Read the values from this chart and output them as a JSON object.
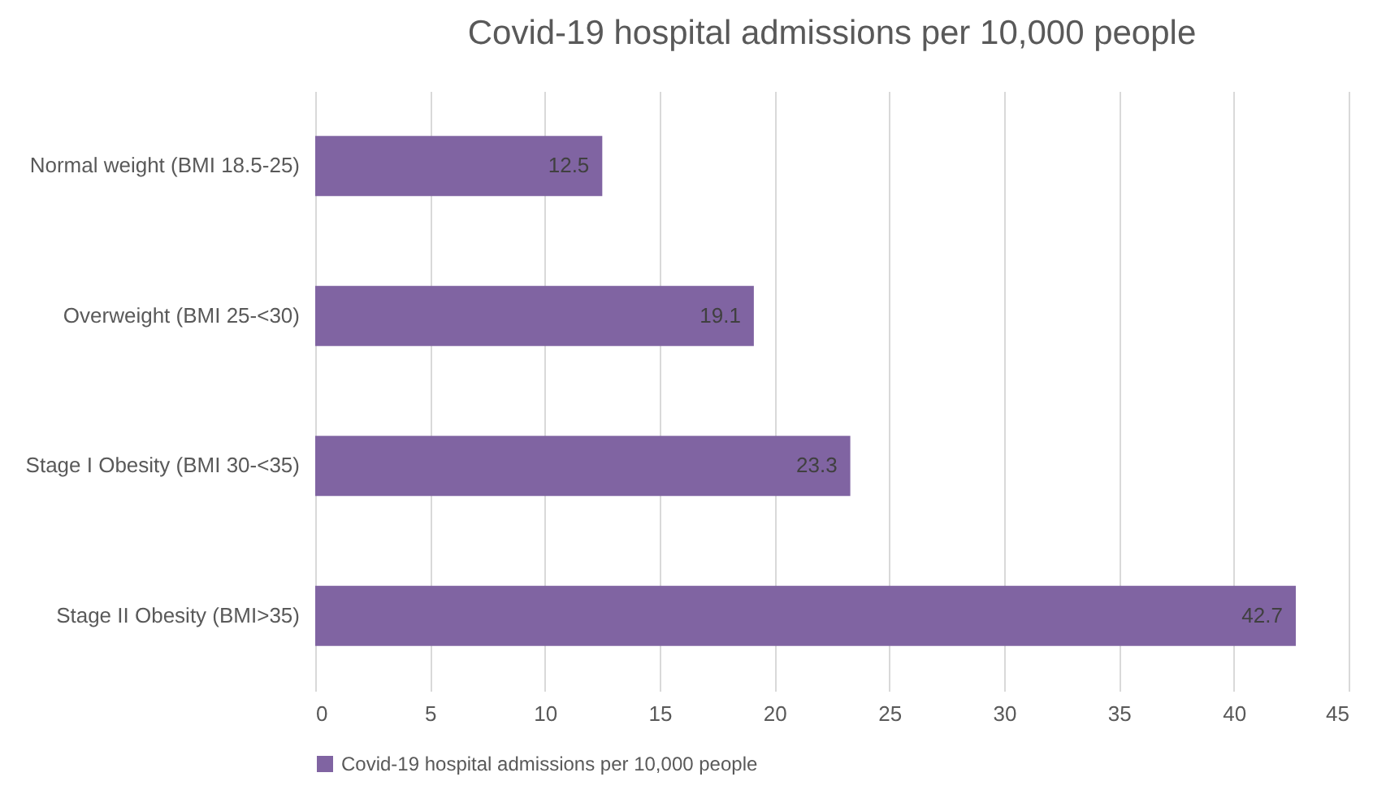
{
  "chart_data": {
    "type": "bar",
    "orientation": "horizontal",
    "title": "Covid-19 hospital admissions per 10,000 people",
    "categories": [
      "Normal weight (BMI 18.5-25)",
      "Overweight (BMI 25-<30)",
      "Stage I Obesity (BMI 30-<35)",
      "Stage II Obesity (BMI>35)"
    ],
    "series": [
      {
        "name": "Covid-19 hospital admissions per 10,000 people",
        "color": "#8064a2",
        "values": [
          12.5,
          19.1,
          23.3,
          42.7
        ]
      }
    ],
    "xlim": [
      0,
      45
    ],
    "xticks": [
      0,
      5,
      10,
      15,
      20,
      25,
      30,
      35,
      40,
      45
    ],
    "grid": "x",
    "legend": "bottom",
    "data_labels": true
  }
}
